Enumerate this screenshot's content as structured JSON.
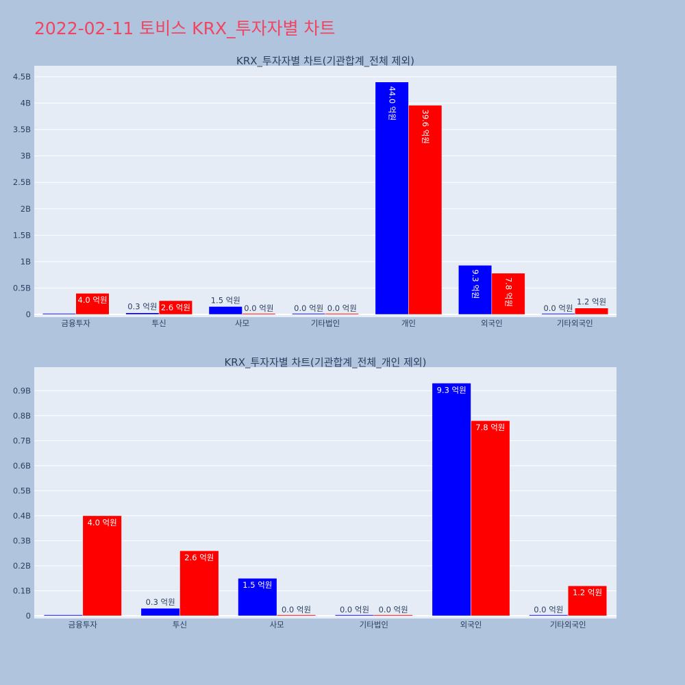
{
  "title": "2022-02-11 토비스 KRX_투자자별 차트",
  "colors": {
    "buy": "#0000ff",
    "sell": "#ff0000",
    "background": "#b0c4de",
    "plot_bg": "#e5ecf6",
    "title": "#ef4560"
  },
  "chart_data": [
    {
      "type": "bar",
      "title": "KRX_투자자별 차트(기관합계_전체 제외)",
      "categories": [
        "금융투자",
        "투신",
        "사모",
        "기타법인",
        "개인",
        "외국인",
        "기타외국인"
      ],
      "series": [
        {
          "values": [
            0,
            30000000,
            150000000,
            0,
            4400000000,
            930000000,
            0
          ],
          "labels": [
            "",
            "0.3 억원",
            "1.5 억원",
            "0.0 억원",
            "44.0 억원",
            "9.3 억원",
            "0.0 억원"
          ]
        },
        {
          "values": [
            400000000,
            260000000,
            0,
            0,
            3960000000,
            780000000,
            120000000
          ],
          "labels": [
            "4.0 억원",
            "2.6 억원",
            "0.0 억원",
            "0.0 억원",
            "39.6 억원",
            "7.8 억원",
            "1.2 억원"
          ]
        }
      ],
      "ylim": [
        0,
        4500000000.0
      ],
      "yticks": [
        {
          "v": 0,
          "t": "0"
        },
        {
          "v": 500000000.0,
          "t": "0.5B"
        },
        {
          "v": 1000000000.0,
          "t": "1B"
        },
        {
          "v": 1500000000.0,
          "t": "1.5B"
        },
        {
          "v": 2000000000.0,
          "t": "2B"
        },
        {
          "v": 2500000000.0,
          "t": "2.5B"
        },
        {
          "v": 3000000000.0,
          "t": "3B"
        },
        {
          "v": 3500000000.0,
          "t": "3.5B"
        },
        {
          "v": 4000000000.0,
          "t": "4B"
        },
        {
          "v": 4500000000.0,
          "t": "4.5B"
        }
      ],
      "grid": true,
      "legend": "none"
    },
    {
      "type": "bar",
      "title": "KRX_투자자별 차트(기관합계_전체_개인 제외)",
      "categories": [
        "금융투자",
        "투신",
        "사모",
        "기타법인",
        "외국인",
        "기타외국인"
      ],
      "series": [
        {
          "values": [
            0,
            30000000,
            150000000,
            0,
            930000000,
            0
          ],
          "labels": [
            "",
            "0.3 억원",
            "1.5 억원",
            "0.0 억원",
            "9.3 억원",
            "0.0 억원"
          ]
        },
        {
          "values": [
            400000000,
            260000000,
            0,
            0,
            780000000,
            120000000
          ],
          "labels": [
            "4.0 억원",
            "2.6 억원",
            "0.0 억원",
            "0.0 억원",
            "7.8 억원",
            "1.2 억원"
          ]
        }
      ],
      "ylim": [
        0,
        950000000.0
      ],
      "yticks": [
        {
          "v": 0,
          "t": "0"
        },
        {
          "v": 100000000.0,
          "t": "0.1B"
        },
        {
          "v": 200000000.0,
          "t": "0.2B"
        },
        {
          "v": 300000000.0,
          "t": "0.3B"
        },
        {
          "v": 400000000.0,
          "t": "0.4B"
        },
        {
          "v": 500000000.0,
          "t": "0.5B"
        },
        {
          "v": 600000000.0,
          "t": "0.6B"
        },
        {
          "v": 700000000.0,
          "t": "0.7B"
        },
        {
          "v": 800000000.0,
          "t": "0.8B"
        },
        {
          "v": 900000000.0,
          "t": "0.9B"
        }
      ],
      "grid": true,
      "legend": "none"
    }
  ]
}
